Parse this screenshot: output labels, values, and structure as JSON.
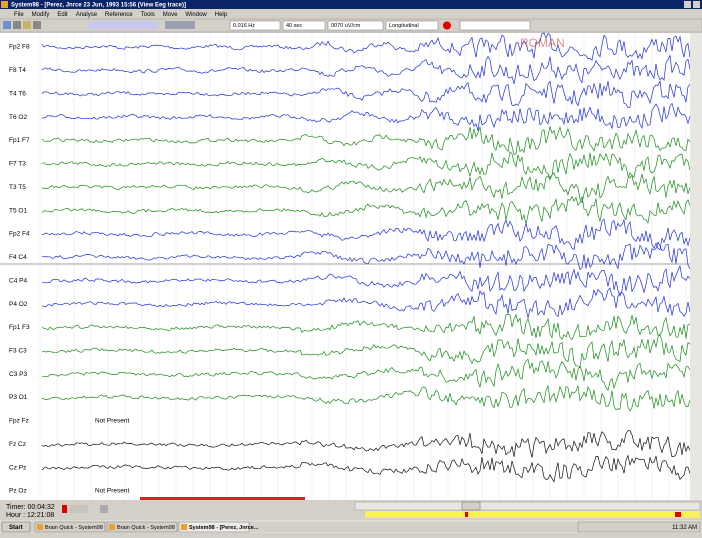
{
  "window": {
    "title": "System98 - [Perez, Jnrce 23 Jun, 1993 15:56 (View Eeg trace)]"
  },
  "menu": [
    "File",
    "Modify",
    "Edit",
    "Analyse",
    "Reference",
    "Tools",
    "Move",
    "Window",
    "Help"
  ],
  "toolbar": {
    "filter": "0.016 Hz",
    "timebase": "40 sec",
    "gain": "0070 uV/cm",
    "montage": "Longitudinal"
  },
  "overlay_label": "ROMAN",
  "channels": [
    {
      "label": "Fp2  F8",
      "color": "#1f2fd6"
    },
    {
      "label": "F8  T4",
      "color": "#1f2fd6"
    },
    {
      "label": "T4  T6",
      "color": "#1f2fd6"
    },
    {
      "label": "T6  O2",
      "color": "#1f2fd6"
    },
    {
      "label": "Fp1  F7",
      "color": "#1a8a1a"
    },
    {
      "label": "F7  T3",
      "color": "#1a8a1a"
    },
    {
      "label": "T3  T5",
      "color": "#1a8a1a"
    },
    {
      "label": "T5  O1",
      "color": "#1a8a1a"
    },
    {
      "label": "Fp2  F4",
      "color": "#1f2fd6"
    },
    {
      "label": "F4  C4",
      "color": "#1f2fd6"
    },
    {
      "label": "C4  P4",
      "color": "#1f2fd6"
    },
    {
      "label": "P4  O2",
      "color": "#1f2fd6"
    },
    {
      "label": "Fp1  F3",
      "color": "#1a8a1a"
    },
    {
      "label": "F3  C3",
      "color": "#1a8a1a"
    },
    {
      "label": "C3  P3",
      "color": "#1a8a1a"
    },
    {
      "label": "P3  O1",
      "color": "#1a8a1a"
    },
    {
      "label": "Fpz  Fz",
      "color": "#1f2fd6",
      "status": "Not Present"
    },
    {
      "label": "Fz  Cz",
      "color": "#111111"
    },
    {
      "label": "Cz  Pz",
      "color": "#111111"
    },
    {
      "label": "Pz  Oz",
      "color": "#1f2fd6",
      "status": "Not Present"
    }
  ],
  "status": {
    "timer": "Timer: 00:04:32",
    "hour": "Hour : 12:21:08"
  },
  "taskbar": {
    "start": "Start",
    "tasks": [
      "Brain Quick - System98",
      "Brain Quick - System98",
      "System98 - [Perez, Jnrce..."
    ],
    "clock": "11:32 AM"
  }
}
